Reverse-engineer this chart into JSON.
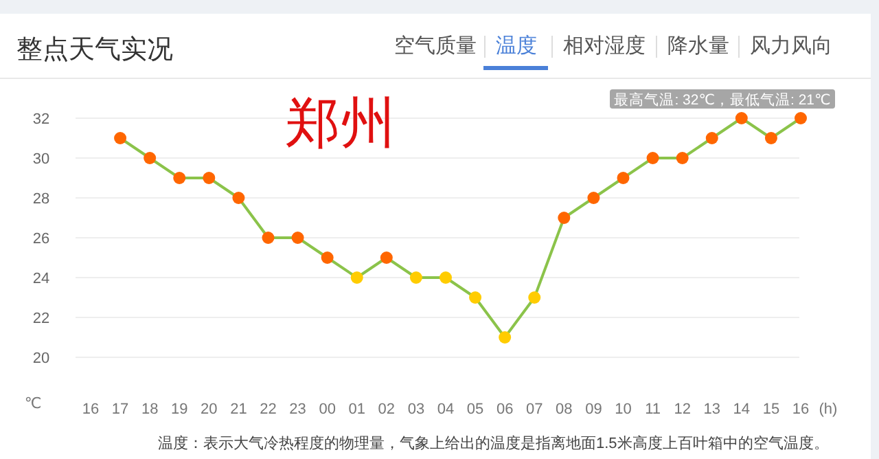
{
  "chart_data": {
    "type": "line",
    "title": "整点天气实况",
    "xlabel": "(h)",
    "ylabel": "℃",
    "categories": [
      "16",
      "17",
      "18",
      "19",
      "20",
      "21",
      "22",
      "23",
      "00",
      "01",
      "02",
      "03",
      "04",
      "05",
      "06",
      "07",
      "08",
      "09",
      "10",
      "11",
      "12",
      "13",
      "14",
      "15",
      "16"
    ],
    "series": [
      {
        "color": "#8bc34a",
        "values": [
          null,
          31,
          30,
          29,
          29,
          28,
          26,
          26,
          25,
          24,
          25,
          24,
          24,
          23,
          21,
          23,
          27,
          28,
          29,
          30,
          30,
          31,
          32,
          31,
          32
        ],
        "colors": [
          null,
          "#ff6600",
          "#ff6600",
          "#ff6600",
          "#ff6600",
          "#ff6600",
          "#ff6600",
          "#ff6600",
          "#ff6600",
          "#ffcc00",
          "#ff6600",
          "#ffcc00",
          "#ffcc00",
          "#ffcc00",
          "#ffcc00",
          "#ffcc00",
          "#ff6600",
          "#ff6600",
          "#ff6600",
          "#ff6600",
          "#ff6600",
          "#ff6600",
          "#ff6600",
          "#ff6600",
          "#ff6600"
        ]
      }
    ],
    "ylim": [
      20,
      32
    ],
    "yticks": [
      20,
      22,
      24,
      26,
      28,
      30,
      32
    ],
    "grid": "y",
    "marker": "circle",
    "line_style": "solid",
    "annotations": [
      "郑州",
      "最高气温: 32℃，最低气温: 21℃",
      "温度：表示大气冷热程度的物理量，气象上给出的温度是指离地面1.5米高度上百叶箱中的空气温度。",
      "空气质量",
      "温度",
      "相对湿度",
      "降水量",
      "风力风向"
    ]
  }
}
